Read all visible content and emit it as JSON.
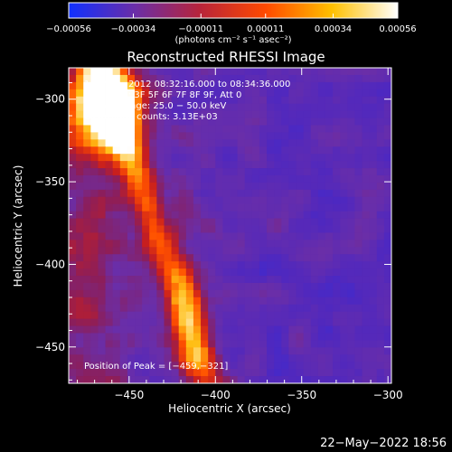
{
  "chart_data": {
    "type": "heatmap",
    "title": "Reconstructed RHESSI Image",
    "xlabel": "Heliocentric X (arcsec)",
    "ylabel": "Heliocentric Y (arcsec)",
    "xlim": [
      -485,
      -298
    ],
    "ylim": [
      -472,
      -281
    ],
    "x_ticks": [
      -450,
      -400,
      -350,
      -300
    ],
    "y_ticks": [
      -300,
      -350,
      -400,
      -450
    ],
    "x_tick_labels": [
      "−450",
      "−400",
      "−350",
      "−300"
    ],
    "y_tick_labels": [
      "−300",
      "−350",
      "−400",
      "−450"
    ],
    "colorbar": {
      "range": [
        -0.00056,
        0.00056
      ],
      "ticks": [
        -0.00056,
        -0.00034,
        -0.00011,
        0.00011,
        0.00034,
        0.00056
      ],
      "tick_labels": [
        "−0.00056",
        "−0.00034",
        "−0.00011",
        "0.00011",
        "0.00034",
        "0.00056"
      ],
      "unit_label": "(photons cm⁻² s⁻¹ asec⁻²)",
      "colors": [
        "#1030ff",
        "#6a2ea8",
        "#b8243a",
        "#ff4a00",
        "#ffc000",
        "#ffffff"
      ]
    },
    "annotations": [
      "16−Aug−2012 08:32:16.000 to 08:34:36.000",
      "Detectors: 3F 5F 6F 7F 8F 9F, Att 0",
      "Energy Range: 25.0 − 50.0 keV",
      "Clean     Total counts: 3.13E+03"
    ],
    "peak_label": "Position of Peak = [−459,−321]",
    "peak": [
      -459,
      -321
    ]
  },
  "footer": {
    "timestamp": "22−May−2022 18:56"
  }
}
